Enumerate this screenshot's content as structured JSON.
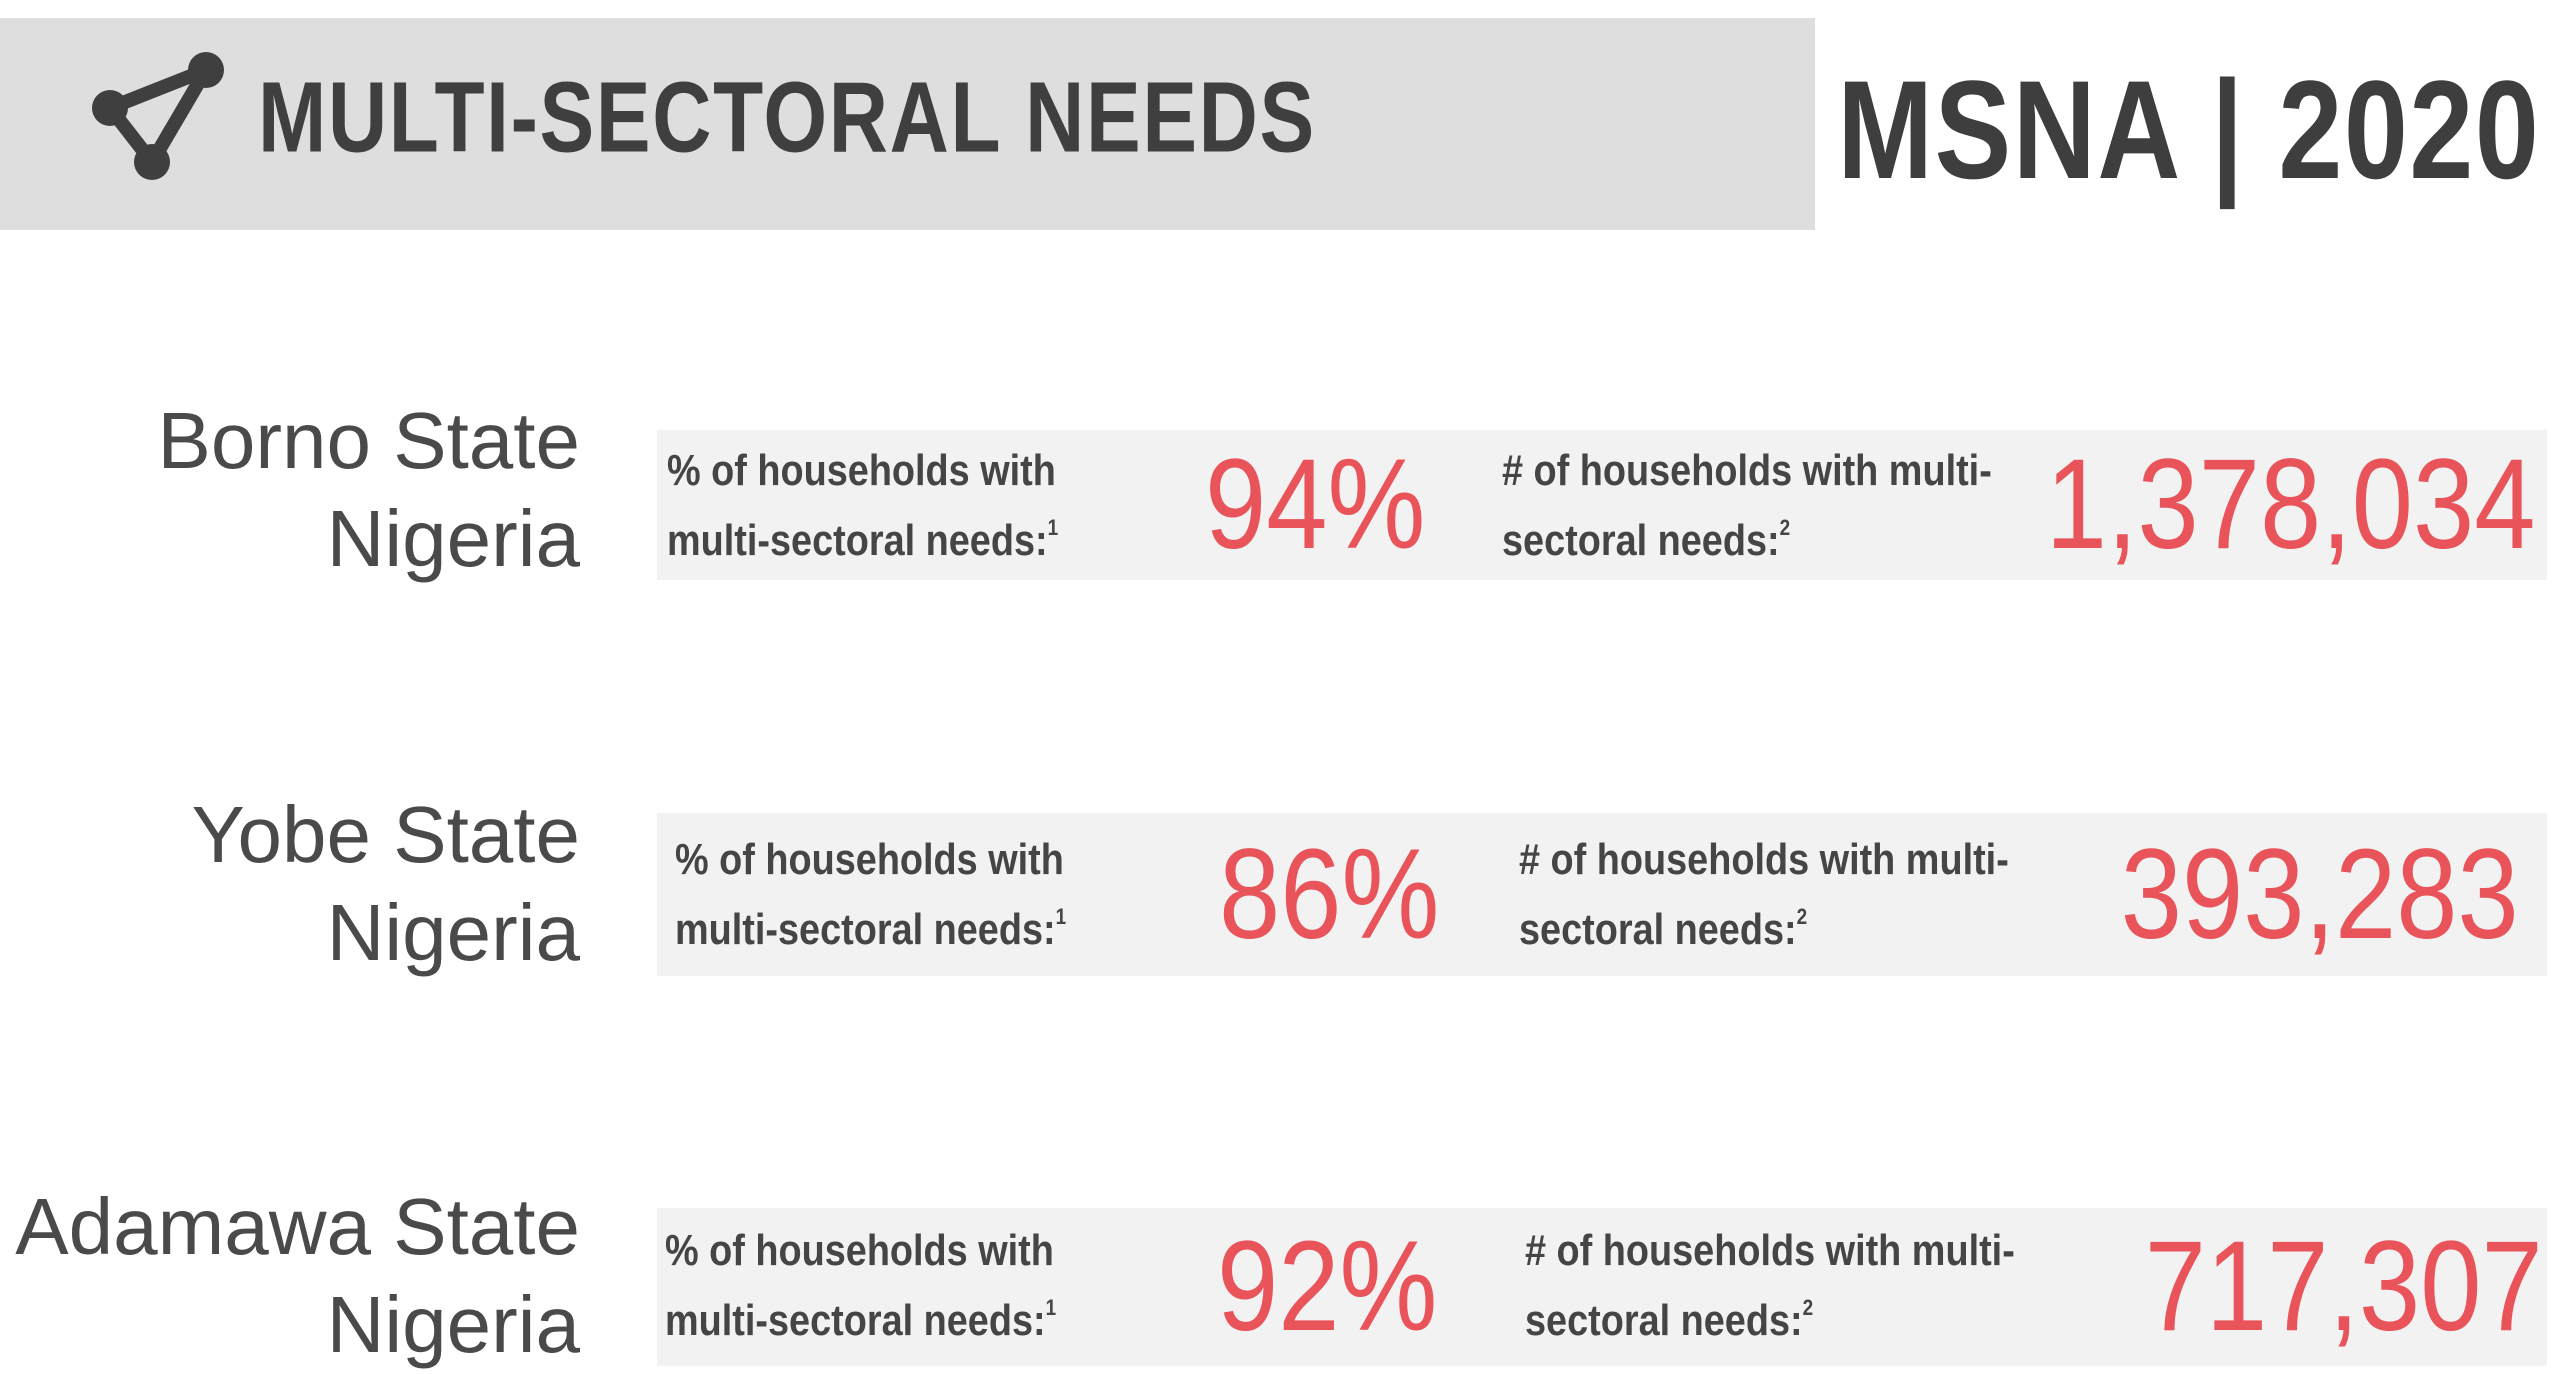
{
  "header": {
    "title": "MULTI-SECTORAL NEEDS",
    "brand": "MSNA | 2020",
    "icon": "network-icon"
  },
  "accent_color": "#e8545a",
  "states": [
    {
      "name_line1": "Borno State",
      "name_line2": "Nigeria",
      "pct_caption_line1": "% of households with",
      "pct_caption_line2": "multi-sectoral needs:",
      "pct_footnote": "1",
      "pct_value": "94%",
      "count_caption_line1": "# of households with multi-",
      "count_caption_line2": "sectoral needs:",
      "count_footnote": "2",
      "count_value": "1,378,034"
    },
    {
      "name_line1": "Yobe State",
      "name_line2": "Nigeria",
      "pct_caption_line1": "% of households with",
      "pct_caption_line2": "multi-sectoral needs:",
      "pct_footnote": "1",
      "pct_value": "86%",
      "count_caption_line1": "# of households with multi-",
      "count_caption_line2": "sectoral needs:",
      "count_footnote": "2",
      "count_value": "393,283"
    },
    {
      "name_line1": "Adamawa State",
      "name_line2": "Nigeria",
      "pct_caption_line1": "% of households with",
      "pct_caption_line2": "multi-sectoral needs:",
      "pct_footnote": "1",
      "pct_value": "92%",
      "count_caption_line1": "# of households with multi-",
      "count_caption_line2": "sectoral needs:",
      "count_footnote": "2",
      "count_value": "717,307"
    }
  ]
}
